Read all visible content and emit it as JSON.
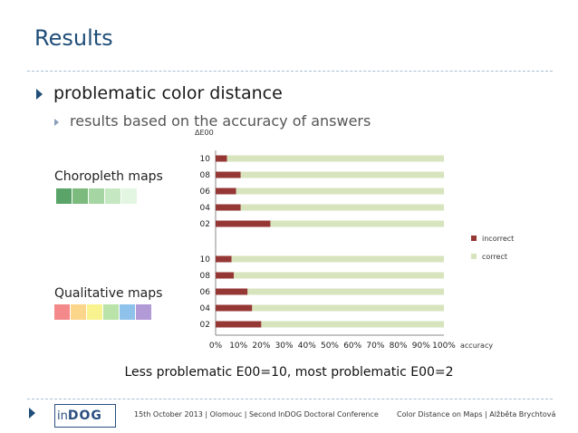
{
  "slide": {
    "title": "Results",
    "bullet_1": "problematic color distance",
    "bullet_2": "results based on the accuracy of answers",
    "choropleth_label": "Choropleth maps",
    "qualitative_label": "Qualitative maps",
    "choropleth_colors": [
      "#5aa469",
      "#7cbb7d",
      "#a5d5a2",
      "#c5e8c2",
      "#e3f6e1"
    ],
    "qualitative_colors": [
      "#f4898b",
      "#fbd58a",
      "#f8f38e",
      "#b9e3a8",
      "#8fc2eb",
      "#b29ad6"
    ],
    "caption": "Less problematic E00=10, most problematic E00=2"
  },
  "footer": {
    "logo_prefix": "in",
    "logo_main": "DOG",
    "left": "15th October 2013 | Olomouc | Second InDOG Doctoral Conference",
    "right": "Color Distance on Maps | Alžběta Brychtová"
  },
  "chart_data": {
    "type": "bar",
    "orientation": "horizontal",
    "stacked": true,
    "ylabel": "ΔE00",
    "xlabel": "accuracy",
    "xlim": [
      0,
      100
    ],
    "x_ticks": [
      "0%",
      "10%",
      "20%",
      "30%",
      "40%",
      "50%",
      "60%",
      "70%",
      "80%",
      "90%",
      "100%"
    ],
    "groups": [
      {
        "name": "Choropleth maps",
        "categories": [
          "10",
          "08",
          "06",
          "04",
          "02"
        ]
      },
      {
        "name": "Qualitative maps",
        "categories": [
          "10",
          "08",
          "06",
          "04",
          "02"
        ]
      }
    ],
    "series": [
      {
        "name": "incorrect",
        "color": "#953735",
        "values": [
          5,
          11,
          9,
          11,
          24,
          7,
          8,
          14,
          16,
          20
        ]
      },
      {
        "name": "correct",
        "color": "#d7e4bd",
        "values": [
          95,
          89,
          91,
          89,
          76,
          93,
          92,
          86,
          84,
          80
        ]
      }
    ],
    "legend": "right"
  }
}
